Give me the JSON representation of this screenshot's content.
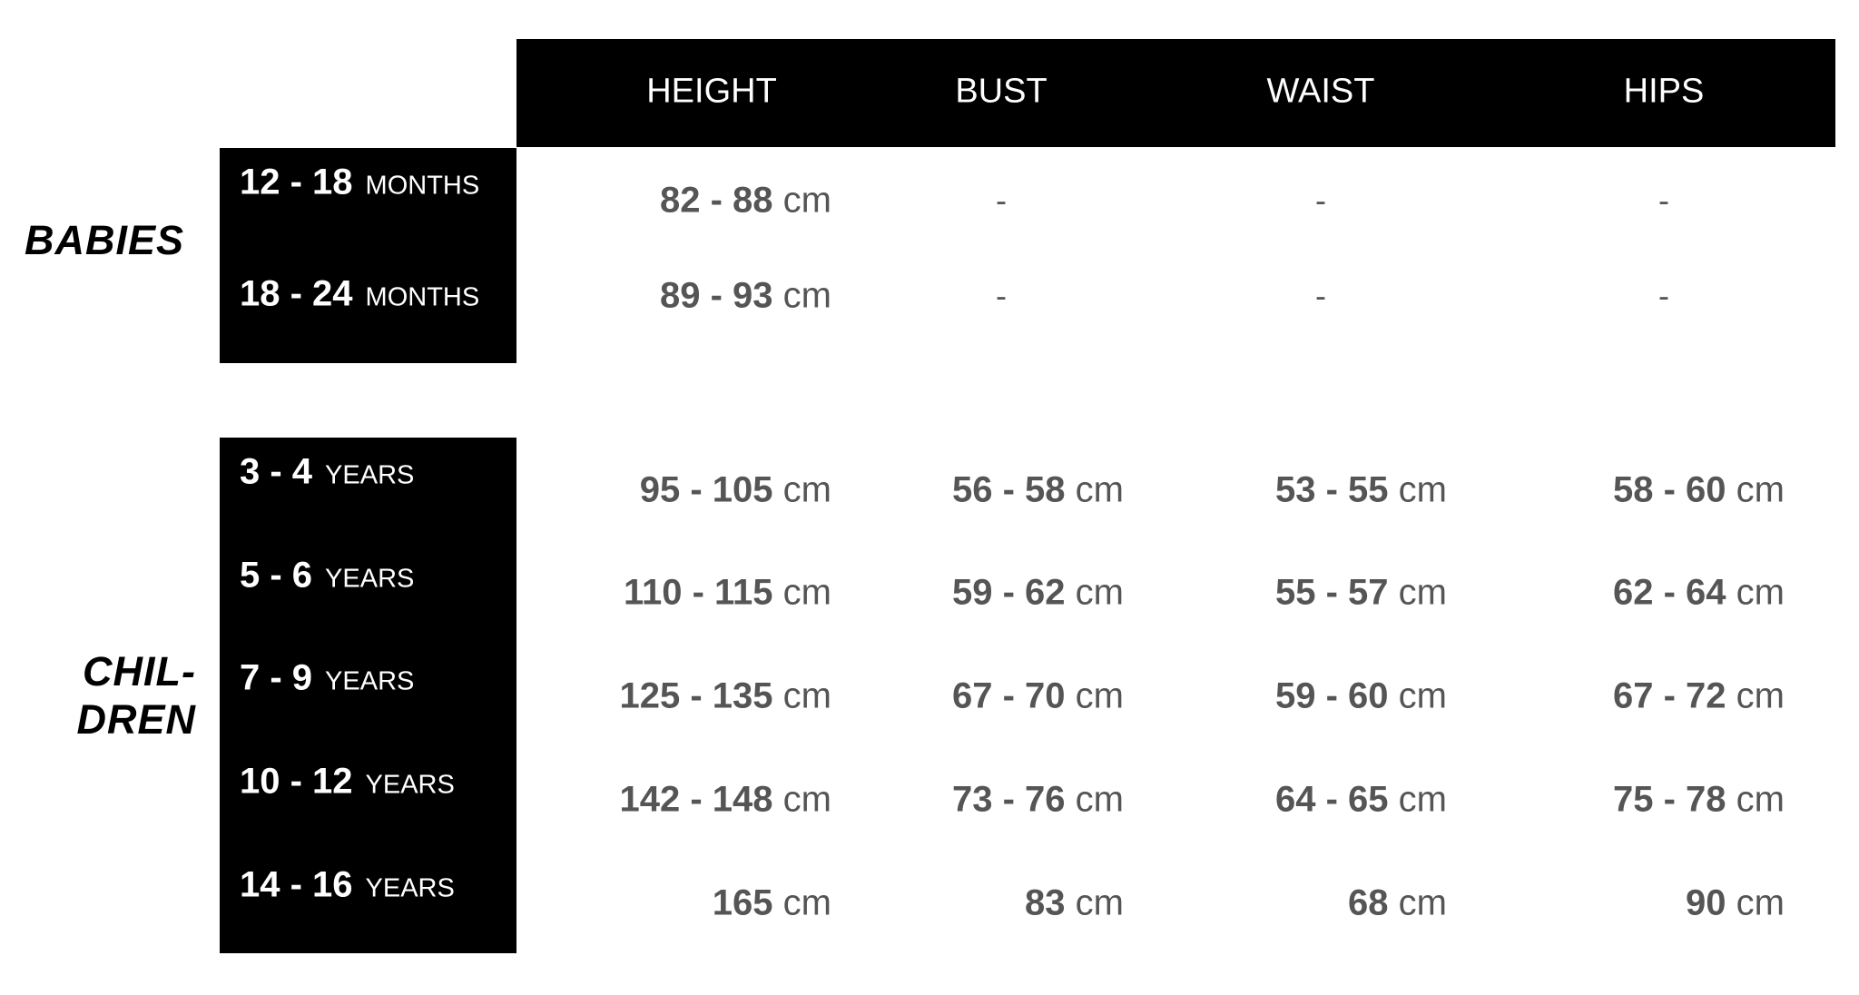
{
  "header": {
    "columns": [
      "HEIGHT",
      "BUST",
      "WAIST",
      "HIPS"
    ]
  },
  "groups": [
    {
      "label": "BABIES",
      "rows": [
        {
          "range": "12 - 18",
          "unit": "MONTHS",
          "values": [
            [
              "82 - 88",
              "cm"
            ],
            "-",
            "-",
            "-"
          ]
        },
        {
          "range": "18 - 24",
          "unit": "MONTHS",
          "values": [
            [
              "89 - 93",
              "cm"
            ],
            "-",
            "-",
            "-"
          ]
        }
      ]
    },
    {
      "label_line1": "CHIL-",
      "label_line2": "DREN",
      "rows": [
        {
          "range": "3 - 4",
          "unit": "YEARS",
          "values": [
            [
              "95 - 105",
              "cm"
            ],
            [
              "56 - 58",
              "cm"
            ],
            [
              "53 - 55",
              "cm"
            ],
            [
              "58 - 60",
              "cm"
            ]
          ]
        },
        {
          "range": "5 - 6",
          "unit": "YEARS",
          "values": [
            [
              "110 - 115",
              "cm"
            ],
            [
              "59 - 62",
              "cm"
            ],
            [
              "55 - 57",
              "cm"
            ],
            [
              "62 - 64",
              "cm"
            ]
          ]
        },
        {
          "range": "7 - 9",
          "unit": "YEARS",
          "values": [
            [
              "125 - 135",
              "cm"
            ],
            [
              "67 - 70",
              "cm"
            ],
            [
              "59 - 60",
              "cm"
            ],
            [
              "67 - 72",
              "cm"
            ]
          ]
        },
        {
          "range": "10 - 12",
          "unit": "YEARS",
          "values": [
            [
              "142 - 148",
              "cm"
            ],
            [
              "73 - 76",
              "cm"
            ],
            [
              "64 - 65",
              "cm"
            ],
            [
              "75 - 78",
              "cm"
            ]
          ]
        },
        {
          "range": "14 - 16",
          "unit": "YEARS",
          "values": [
            [
              "165",
              "cm"
            ],
            [
              "83",
              "cm"
            ],
            [
              "68",
              "cm"
            ],
            [
              "90",
              "cm"
            ]
          ]
        }
      ]
    }
  ],
  "colors": {
    "header_bg": "#000000",
    "value_text": "#555555"
  }
}
